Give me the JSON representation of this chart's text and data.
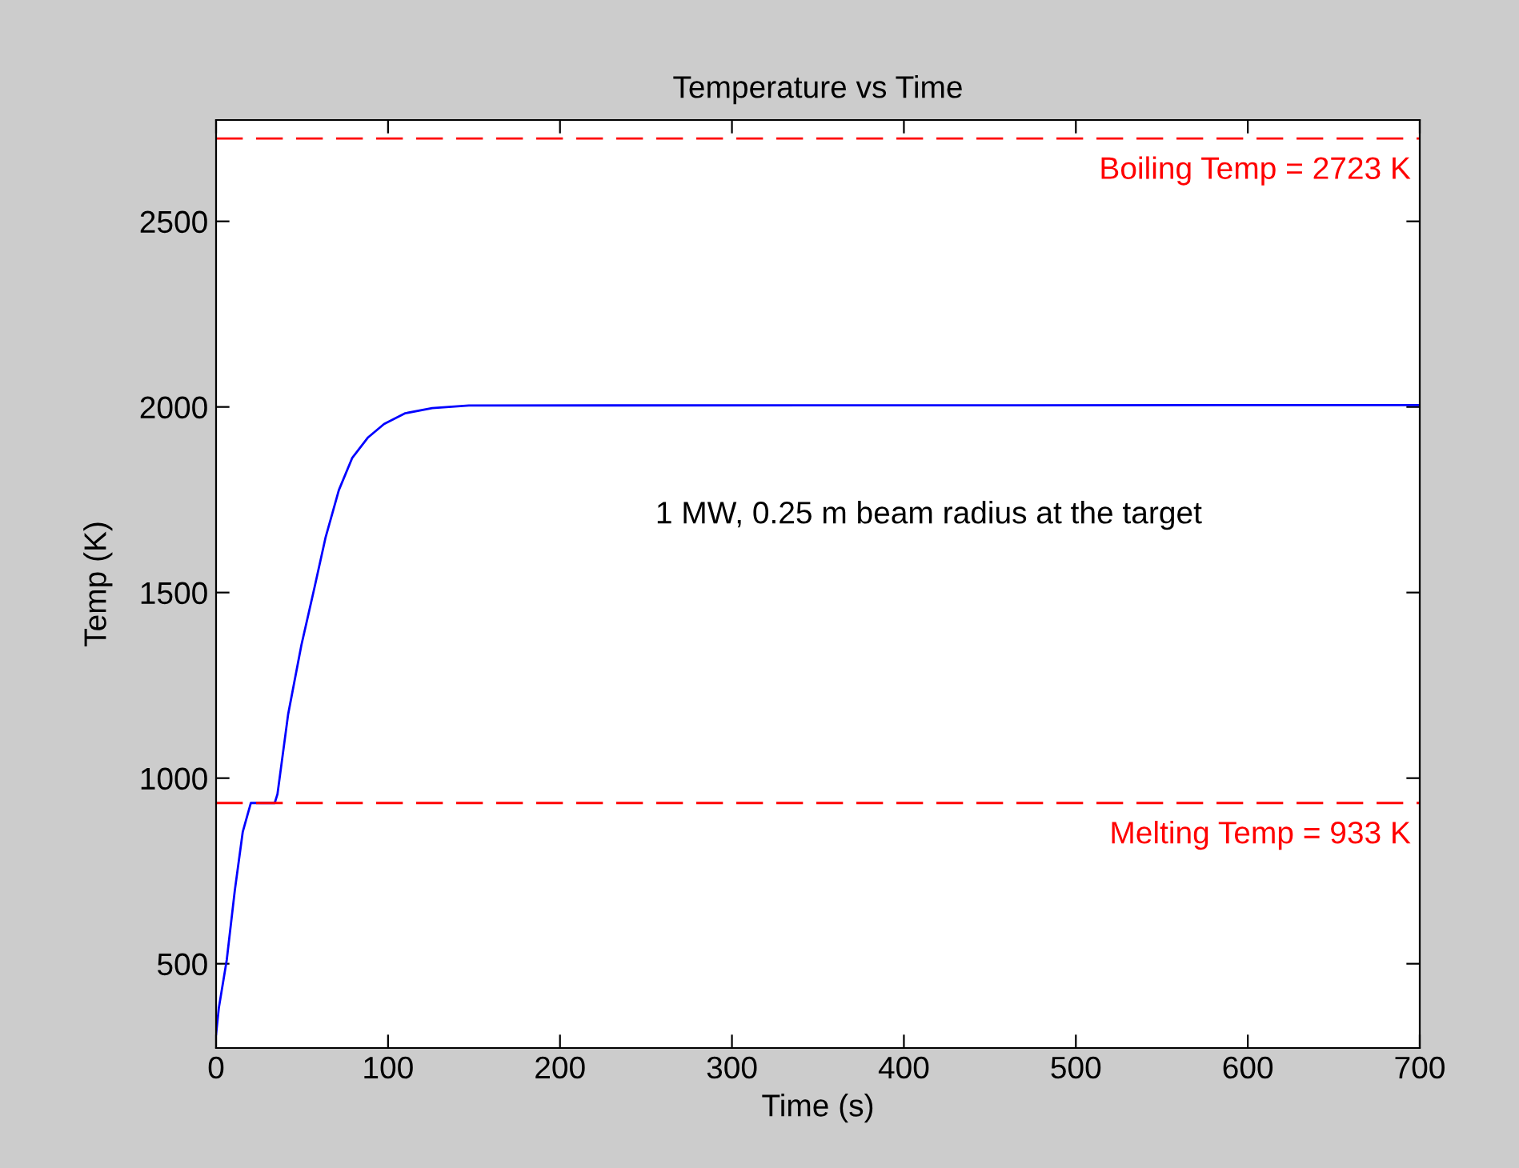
{
  "chart_data": {
    "type": "line",
    "title": "Temperature vs Time",
    "xlabel": "Time (s)",
    "ylabel": "Temp (K)",
    "x": [
      0,
      1.6,
      6.2,
      10.9,
      15.5,
      20.2,
      34.1,
      35.7,
      41.9,
      49.6,
      57.4,
      63.6,
      71.4,
      79.1,
      88.4,
      97.7,
      110,
      125.7,
      147,
      700
    ],
    "series": [
      {
        "color": "#0000ff",
        "values": [
          310,
          381,
          510,
          698,
          855,
          933,
          933,
          957,
          1172,
          1358,
          1517,
          1647,
          1776,
          1862,
          1918,
          1954,
          1983,
          1997,
          2004,
          2005
        ]
      }
    ],
    "xlim": [
      0,
      700
    ],
    "xticks": [
      0,
      100,
      200,
      300,
      400,
      500,
      600,
      700
    ],
    "ylim": [
      273,
      2773
    ],
    "yticks": [
      500,
      1000,
      1500,
      2000,
      2500
    ],
    "ref_lines": [
      {
        "axis": "y",
        "value": 2723,
        "label": "Boiling Temp = 2723 K",
        "color": "#ff0000",
        "line_style": "dashed"
      },
      {
        "axis": "y",
        "value": 933,
        "label": "Melting Temp = 933 K",
        "color": "#ff0000",
        "line_style": "dashed"
      }
    ],
    "annotations": [
      "1 MW, 0.25 m beam radius at the target"
    ],
    "grid": false,
    "legend": false
  }
}
